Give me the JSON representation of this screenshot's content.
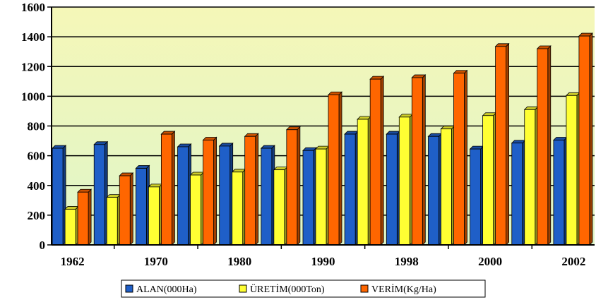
{
  "chart_data": {
    "type": "bar",
    "categories": [
      "1962",
      "",
      "1970",
      "",
      "1980",
      "",
      "1990",
      "",
      "1998",
      "",
      "2000",
      "",
      "2002"
    ],
    "series": [
      {
        "name": "ALAN(000Ha)",
        "values": [
          650,
          675,
          515,
          660,
          665,
          650,
          635,
          745,
          745,
          730,
          645,
          685,
          705
        ],
        "color": "#1f5fc8"
      },
      {
        "name": "ÜRETİM(000Ton)",
        "values": [
          240,
          320,
          390,
          470,
          490,
          505,
          645,
          845,
          860,
          780,
          870,
          910,
          1005
        ],
        "color": "#ffff33"
      },
      {
        "name": "VERİM(Kg/Ha)",
        "values": [
          355,
          465,
          745,
          705,
          730,
          775,
          1010,
          1115,
          1125,
          1155,
          1335,
          1320,
          1405
        ],
        "color": "#ff6600"
      }
    ],
    "y_ticks": [
      "0",
      "200",
      "400",
      "600",
      "800",
      "1000",
      "1200",
      "1400",
      "1600"
    ],
    "ylim": [
      0,
      1600
    ],
    "grid": true,
    "legend": "bottom",
    "plot_background": [
      "#f5f7b8",
      "#dff5c8"
    ]
  }
}
